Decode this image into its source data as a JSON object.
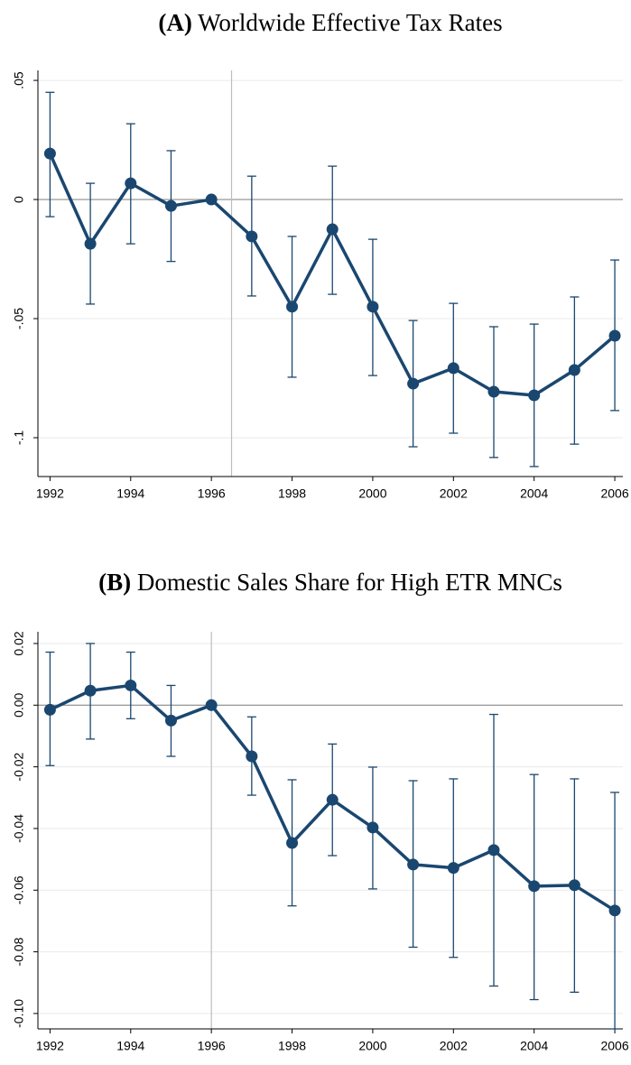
{
  "chart_data": [
    {
      "type": "line",
      "panel": "(A)",
      "title": "Worldwide Effective Tax Rates",
      "x": [
        1992,
        1993,
        1994,
        1995,
        1996,
        1997,
        1998,
        1999,
        2000,
        2001,
        2002,
        2003,
        2004,
        2005,
        2006
      ],
      "series": [
        {
          "color": "#1a476f",
          "values": [
            0.0193,
            -0.0186,
            0.0068,
            -0.0027,
            0,
            -0.0155,
            -0.045,
            -0.0125,
            -0.045,
            -0.0773,
            -0.0708,
            -0.0807,
            -0.0822,
            -0.0716,
            -0.0572
          ],
          "lower": [
            -0.0072,
            -0.0439,
            -0.0186,
            -0.026,
            null,
            -0.0405,
            -0.0746,
            -0.0398,
            -0.0739,
            -0.1038,
            -0.0981,
            -0.1083,
            -0.1121,
            -0.1027,
            -0.0886
          ],
          "upper": [
            0.045,
            0.0068,
            0.0318,
            0.0205,
            null,
            0.0098,
            -0.0155,
            0.014,
            -0.0167,
            -0.0508,
            -0.0436,
            -0.0534,
            -0.0523,
            -0.0409,
            -0.0254
          ]
        }
      ],
      "xlim": [
        1991.7,
        2006.2
      ],
      "xticks": [
        1992,
        1994,
        1996,
        1998,
        2000,
        2002,
        2004,
        2006
      ],
      "ylim": [
        -0.1163,
        0.0542
      ],
      "yticks": [
        {
          "value": 0.05,
          "label": ".05"
        },
        0,
        {
          "value": -0.05,
          "label": "-.05"
        },
        {
          "value": -0.1,
          "label": "-.1"
        }
      ],
      "grid": true,
      "hline": 0,
      "vline": 1996.5
    },
    {
      "type": "line",
      "panel": "(B)",
      "title": "Domestic Sales Share for High ETR MNCs",
      "x": [
        1992,
        1993,
        1994,
        1995,
        1996,
        1997,
        1998,
        1999,
        2000,
        2001,
        2002,
        2003,
        2004,
        2005,
        2006
      ],
      "series": [
        {
          "color": "#1a476f",
          "values": [
            -0.0015,
            0.0047,
            0.0064,
            -0.005,
            0,
            -0.0166,
            -0.0447,
            -0.0307,
            -0.0397,
            -0.0517,
            -0.0528,
            -0.047,
            -0.0587,
            -0.0584,
            -0.0666
          ],
          "lower": [
            -0.0196,
            -0.011,
            -0.0044,
            -0.0166,
            null,
            -0.0292,
            -0.0651,
            -0.0488,
            -0.0596,
            -0.0785,
            -0.0818,
            -0.0911,
            -0.0955,
            -0.0931,
            -0.105
          ],
          "upper": [
            0.0172,
            0.02,
            0.0172,
            0.0064,
            null,
            -0.0038,
            -0.0242,
            -0.0126,
            -0.0201,
            -0.0245,
            -0.0239,
            -0.003,
            -0.0225,
            -0.0239,
            -0.0283
          ]
        }
      ],
      "xlim": [
        1991.7,
        2006.2
      ],
      "xticks": [
        1992,
        1994,
        1996,
        1998,
        2000,
        2002,
        2004,
        2006
      ],
      "ylim": [
        -0.105,
        0.0238
      ],
      "yticks": [
        0.02,
        {
          "value": 0,
          "label": "0.00"
        },
        -0.02,
        -0.04,
        -0.06,
        -0.08,
        {
          "value": -0.1,
          "label": "-0.10"
        }
      ],
      "grid": true,
      "hline": 0,
      "vline": 1996
    }
  ]
}
